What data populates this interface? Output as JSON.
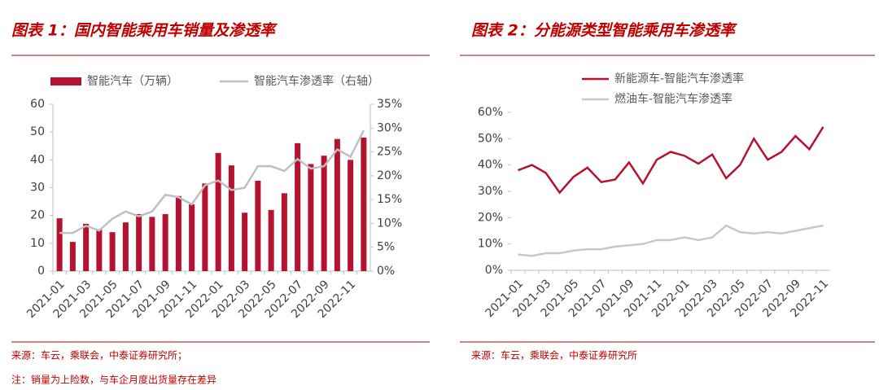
{
  "chart_data": [
    {
      "type": "bar",
      "title": "图表 1：国内智能乘用车销量及渗透率",
      "categories": [
        "2021-01",
        null,
        "2021-03",
        null,
        "2021-05",
        null,
        "2021-07",
        null,
        "2021-09",
        null,
        "2021-11",
        null,
        "2022-01",
        null,
        "2022-03",
        null,
        "2022-05",
        null,
        "2022-07",
        null,
        "2022-09",
        null,
        "2022-11",
        null
      ],
      "series": [
        {
          "name": "智能汽车（万辆）",
          "type": "bar",
          "color": "#b5122f",
          "values": [
            19,
            10.5,
            17,
            15,
            14,
            17.5,
            20.5,
            19.5,
            20.5,
            27,
            24,
            31.5,
            42.5,
            38,
            21,
            32.5,
            22,
            28,
            46,
            38.5,
            41.5,
            47.5,
            40,
            48
          ]
        },
        {
          "name": "智能汽车渗透率（右轴）",
          "type": "line",
          "axis": "y2",
          "color": "#bfbfbf",
          "values": [
            8,
            8,
            9.5,
            8.5,
            11,
            12.5,
            11.5,
            12.5,
            16,
            15.5,
            14,
            18,
            19,
            17,
            17.5,
            22,
            22,
            21,
            23.5,
            21.5,
            22,
            25.5,
            24,
            29.5
          ]
        }
      ],
      "ylim": [
        0,
        60
      ],
      "yticks": [
        0,
        10,
        20,
        30,
        40,
        50,
        60
      ],
      "y2lim": [
        0,
        35
      ],
      "y2ticks": [
        {
          "value": 0,
          "label": "0%"
        },
        {
          "value": 5,
          "label": "5%"
        },
        {
          "value": 10,
          "label": "10%"
        },
        {
          "value": 15,
          "label": "15%"
        },
        {
          "value": 20,
          "label": "20%"
        },
        {
          "value": 25,
          "label": "25%"
        },
        {
          "value": 30,
          "label": "30%"
        },
        {
          "value": 35,
          "label": "35%"
        }
      ],
      "source": "来源：车云，乘联会，中泰证券研究所；",
      "note": "注：销量为上险数，与车企月度出货量存在差异"
    },
    {
      "type": "line",
      "title": "图表 2：分能源类型智能乘用车渗透率",
      "categories": [
        "2021-01",
        null,
        "2021-03",
        null,
        "2021-05",
        null,
        "2021-07",
        null,
        "2021-09",
        null,
        "2021-11",
        null,
        "2022-01",
        null,
        "2022-03",
        null,
        "2022-05",
        null,
        "2022-07",
        null,
        "2022-09",
        null,
        "2022-11"
      ],
      "series": [
        {
          "name": "新能源车-智能汽车渗透率",
          "color": "#b5122f",
          "values": [
            38,
            40,
            37,
            29.5,
            35.5,
            39,
            33.5,
            34.5,
            41,
            33,
            42,
            45,
            43.5,
            40.5,
            44,
            35,
            40,
            50,
            42,
            45,
            51,
            46,
            54.5
          ]
        },
        {
          "name": "燃油车-智能汽车渗透率",
          "color": "#c8c8c8",
          "values": [
            6,
            5.5,
            6.5,
            6.5,
            7.5,
            8,
            8,
            9,
            9.5,
            10,
            11.5,
            11.5,
            12.5,
            11.5,
            12.5,
            17,
            14.5,
            14,
            14.5,
            14,
            15,
            16,
            17
          ]
        }
      ],
      "ylim": [
        0,
        60
      ],
      "yticks": [
        {
          "value": 0,
          "label": "0%"
        },
        {
          "value": 10,
          "label": "10%"
        },
        {
          "value": 20,
          "label": "20%"
        },
        {
          "value": 30,
          "label": "30%"
        },
        {
          "value": 40,
          "label": "40%"
        },
        {
          "value": 50,
          "label": "50%"
        },
        {
          "value": 60,
          "label": "60%"
        }
      ],
      "source": "来源：车云，乘联会，中泰证券研究所"
    }
  ]
}
